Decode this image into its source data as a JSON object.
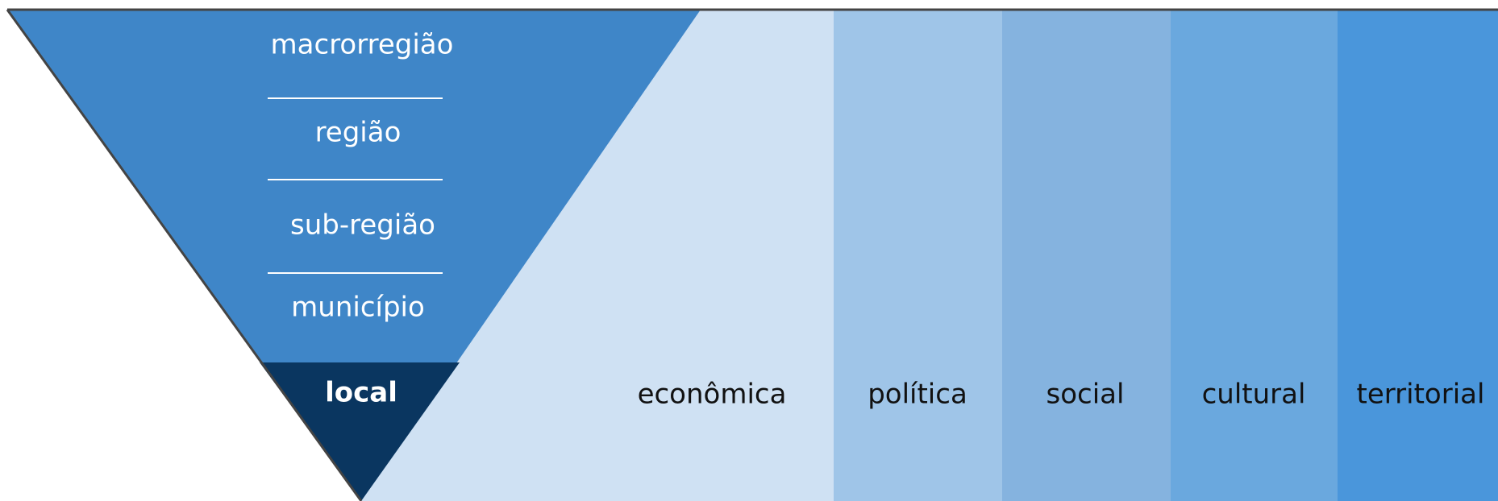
{
  "levels": [
    "macrorregião",
    "região",
    "sub-região",
    "município",
    "local"
  ],
  "dimensions": [
    "econômica",
    "política",
    "social",
    "cultural",
    "territorial"
  ]
}
